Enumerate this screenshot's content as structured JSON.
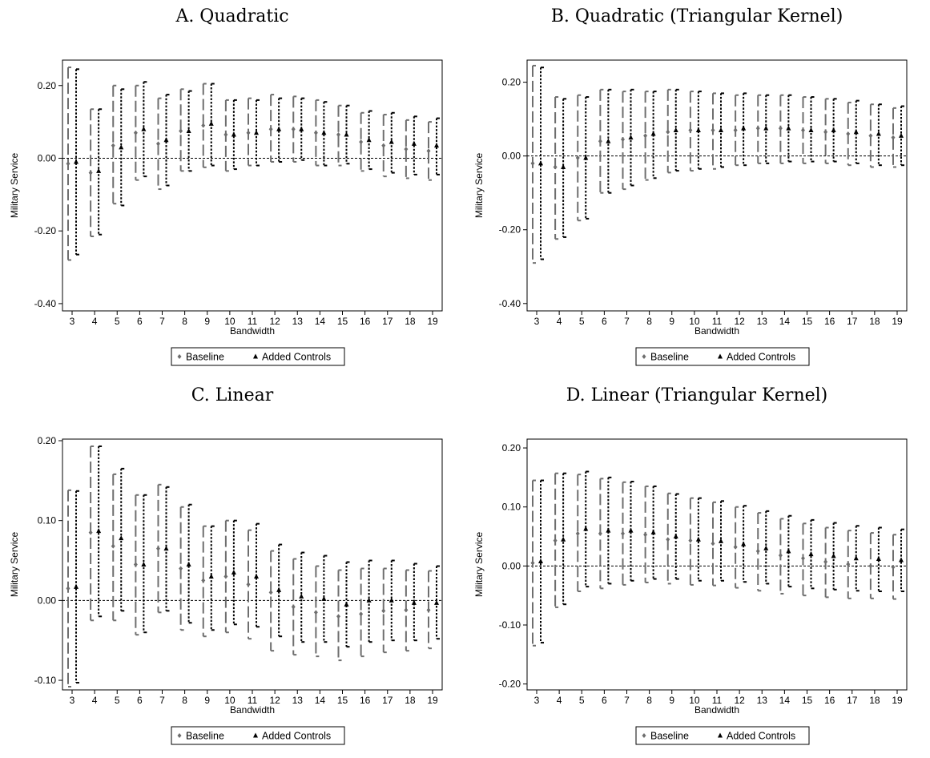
{
  "colors": {
    "baseline": "#6e6e6e",
    "added_controls": "#000000",
    "zero_line": "#000000"
  },
  "chart_data": [
    {
      "type": "errorbar",
      "title": "A. Quadratic",
      "xlabel": "Bandwidth",
      "ylabel": "Military Service",
      "x": [
        3,
        4,
        5,
        6,
        7,
        8,
        9,
        10,
        11,
        12,
        13,
        14,
        15,
        16,
        17,
        18,
        19
      ],
      "xticks": [
        "3",
        "4",
        "5",
        "6",
        "7",
        "8",
        "9",
        "10",
        "11",
        "12",
        "13",
        "14",
        "15",
        "16",
        "17",
        "18",
        "19"
      ],
      "ylim": [
        -0.42,
        0.27
      ],
      "yticks": [
        -0.4,
        -0.2,
        0.0,
        0.2
      ],
      "ytick_labels": [
        "-0.40",
        "-0.20",
        "0.00",
        "0.20"
      ],
      "legend": [
        "Baseline",
        "Added Controls"
      ],
      "series": [
        {
          "name": "Baseline",
          "point": [
            -0.015,
            -0.04,
            0.035,
            0.07,
            0.04,
            0.075,
            0.09,
            0.065,
            0.07,
            0.08,
            0.08,
            0.07,
            0.065,
            0.045,
            0.035,
            0.025,
            0.02
          ],
          "lower": [
            -0.28,
            -0.215,
            -0.125,
            -0.06,
            -0.085,
            -0.035,
            -0.025,
            -0.035,
            -0.02,
            -0.01,
            -0.01,
            -0.02,
            -0.02,
            -0.035,
            -0.05,
            -0.055,
            -0.06
          ],
          "upper": [
            0.25,
            0.135,
            0.2,
            0.2,
            0.165,
            0.19,
            0.205,
            0.16,
            0.165,
            0.175,
            0.17,
            0.16,
            0.145,
            0.125,
            0.12,
            0.105,
            0.1
          ]
        },
        {
          "name": "Added Controls",
          "point": [
            -0.01,
            -0.035,
            0.03,
            0.08,
            0.05,
            0.075,
            0.095,
            0.065,
            0.07,
            0.08,
            0.08,
            0.07,
            0.065,
            0.05,
            0.045,
            0.04,
            0.035
          ],
          "lower": [
            -0.265,
            -0.21,
            -0.13,
            -0.05,
            -0.075,
            -0.035,
            -0.02,
            -0.03,
            -0.02,
            -0.01,
            -0.005,
            -0.02,
            -0.015,
            -0.03,
            -0.04,
            -0.045,
            -0.045
          ],
          "upper": [
            0.245,
            0.135,
            0.19,
            0.21,
            0.175,
            0.185,
            0.205,
            0.16,
            0.16,
            0.165,
            0.165,
            0.155,
            0.145,
            0.13,
            0.125,
            0.115,
            0.11
          ]
        }
      ]
    },
    {
      "type": "errorbar",
      "title": "B. Quadratic (Triangular Kernel)",
      "xlabel": "Bandwidth",
      "ylabel": "Military Service",
      "x": [
        3,
        4,
        5,
        6,
        7,
        8,
        9,
        10,
        11,
        12,
        13,
        14,
        15,
        16,
        17,
        18,
        19
      ],
      "xticks": [
        "3",
        "4",
        "5",
        "6",
        "7",
        "8",
        "9",
        "10",
        "11",
        "12",
        "13",
        "14",
        "15",
        "16",
        "17",
        "18",
        "19"
      ],
      "ylim": [
        -0.42,
        0.26
      ],
      "yticks": [
        -0.4,
        -0.2,
        0.0,
        0.2
      ],
      "ytick_labels": [
        "-0.40",
        "-0.20",
        "0.00",
        "0.20"
      ],
      "legend": [
        "Baseline",
        "Added Controls"
      ],
      "series": [
        {
          "name": "Baseline",
          "point": [
            -0.02,
            -0.03,
            -0.005,
            0.04,
            0.045,
            0.055,
            0.065,
            0.07,
            0.07,
            0.07,
            0.075,
            0.075,
            0.07,
            0.065,
            0.06,
            0.055,
            0.05
          ],
          "lower": [
            -0.29,
            -0.225,
            -0.175,
            -0.1,
            -0.09,
            -0.065,
            -0.045,
            -0.04,
            -0.035,
            -0.025,
            -0.02,
            -0.02,
            -0.02,
            -0.02,
            -0.025,
            -0.03,
            -0.03
          ],
          "upper": [
            0.245,
            0.16,
            0.165,
            0.18,
            0.175,
            0.175,
            0.18,
            0.175,
            0.17,
            0.165,
            0.165,
            0.165,
            0.16,
            0.155,
            0.145,
            0.14,
            0.13
          ]
        },
        {
          "name": "Added Controls",
          "point": [
            -0.02,
            -0.03,
            -0.005,
            0.04,
            0.05,
            0.06,
            0.07,
            0.07,
            0.07,
            0.075,
            0.075,
            0.075,
            0.07,
            0.07,
            0.065,
            0.06,
            0.055
          ],
          "lower": [
            -0.28,
            -0.22,
            -0.17,
            -0.1,
            -0.08,
            -0.06,
            -0.04,
            -0.035,
            -0.03,
            -0.025,
            -0.02,
            -0.015,
            -0.015,
            -0.015,
            -0.02,
            -0.025,
            -0.025
          ],
          "upper": [
            0.24,
            0.155,
            0.16,
            0.18,
            0.18,
            0.175,
            0.18,
            0.175,
            0.17,
            0.17,
            0.165,
            0.165,
            0.16,
            0.155,
            0.15,
            0.14,
            0.135
          ]
        }
      ]
    },
    {
      "type": "errorbar",
      "title": "C. Linear",
      "xlabel": "Bandwidth",
      "ylabel": "Military Service",
      "x": [
        3,
        4,
        5,
        6,
        7,
        8,
        9,
        10,
        11,
        12,
        13,
        14,
        15,
        16,
        17,
        18,
        19
      ],
      "xticks": [
        "3",
        "4",
        "5",
        "6",
        "7",
        "8",
        "9",
        "10",
        "11",
        "12",
        "13",
        "14",
        "15",
        "16",
        "17",
        "18",
        "19"
      ],
      "ylim": [
        -0.112,
        0.202
      ],
      "yticks": [
        -0.1,
        0.0,
        0.1,
        0.2
      ],
      "ytick_labels": [
        "-0.10",
        "0.00",
        "0.10",
        "0.20"
      ],
      "legend": [
        "Baseline",
        "Added Controls"
      ],
      "series": [
        {
          "name": "Baseline",
          "point": [
            0.015,
            0.085,
            0.068,
            0.045,
            0.065,
            0.04,
            0.025,
            0.03,
            0.02,
            0.01,
            -0.008,
            -0.015,
            -0.02,
            -0.017,
            -0.013,
            -0.012,
            -0.012
          ],
          "lower": [
            -0.108,
            -0.025,
            -0.025,
            -0.043,
            -0.015,
            -0.037,
            -0.045,
            -0.04,
            -0.048,
            -0.063,
            -0.068,
            -0.07,
            -0.075,
            -0.07,
            -0.065,
            -0.063,
            -0.06
          ],
          "upper": [
            0.138,
            0.193,
            0.158,
            0.132,
            0.145,
            0.117,
            0.093,
            0.1,
            0.088,
            0.062,
            0.052,
            0.043,
            0.038,
            0.04,
            0.04,
            0.038,
            0.037
          ]
        },
        {
          "name": "Added Controls",
          "point": [
            0.017,
            0.087,
            0.078,
            0.045,
            0.065,
            0.045,
            0.03,
            0.035,
            0.03,
            0.013,
            0.005,
            0.002,
            -0.005,
            0.0,
            0.0,
            -0.003,
            -0.003
          ],
          "lower": [
            -0.103,
            -0.02,
            -0.013,
            -0.04,
            -0.013,
            -0.028,
            -0.037,
            -0.03,
            -0.033,
            -0.045,
            -0.052,
            -0.052,
            -0.058,
            -0.052,
            -0.05,
            -0.05,
            -0.048
          ],
          "upper": [
            0.137,
            0.193,
            0.165,
            0.132,
            0.142,
            0.12,
            0.093,
            0.1,
            0.096,
            0.07,
            0.06,
            0.056,
            0.048,
            0.05,
            0.05,
            0.046,
            0.043
          ]
        }
      ]
    },
    {
      "type": "errorbar",
      "title": "D. Linear (Triangular Kernel)",
      "xlabel": "Bandwidth",
      "ylabel": "Military Service",
      "x": [
        3,
        4,
        5,
        6,
        7,
        8,
        9,
        10,
        11,
        12,
        13,
        14,
        15,
        16,
        17,
        18,
        19
      ],
      "xticks": [
        "3",
        "4",
        "5",
        "6",
        "7",
        "8",
        "9",
        "10",
        "11",
        "12",
        "13",
        "14",
        "15",
        "16",
        "17",
        "18",
        "19"
      ],
      "ylim": [
        -0.21,
        0.215
      ],
      "yticks": [
        -0.2,
        -0.1,
        0.0,
        0.1,
        0.2
      ],
      "ytick_labels": [
        "-0.20",
        "-0.10",
        "0.00",
        "0.10",
        "0.20"
      ],
      "legend": [
        "Baseline",
        "Added Controls"
      ],
      "series": [
        {
          "name": "Baseline",
          "point": [
            0.005,
            0.043,
            0.055,
            0.055,
            0.055,
            0.053,
            0.045,
            0.043,
            0.038,
            0.032,
            0.025,
            0.018,
            0.013,
            0.007,
            0.003,
            0.0,
            -0.002
          ],
          "lower": [
            -0.135,
            -0.07,
            -0.043,
            -0.038,
            -0.032,
            -0.028,
            -0.03,
            -0.032,
            -0.033,
            -0.037,
            -0.042,
            -0.047,
            -0.05,
            -0.053,
            -0.055,
            -0.055,
            -0.056
          ],
          "upper": [
            0.145,
            0.157,
            0.155,
            0.148,
            0.142,
            0.135,
            0.123,
            0.115,
            0.108,
            0.1,
            0.09,
            0.08,
            0.072,
            0.065,
            0.06,
            0.056,
            0.053
          ]
        },
        {
          "name": "Added Controls",
          "point": [
            0.008,
            0.045,
            0.063,
            0.06,
            0.06,
            0.057,
            0.05,
            0.045,
            0.042,
            0.037,
            0.03,
            0.025,
            0.02,
            0.017,
            0.013,
            0.012,
            0.01
          ],
          "lower": [
            -0.13,
            -0.065,
            -0.035,
            -0.03,
            -0.025,
            -0.022,
            -0.022,
            -0.025,
            -0.025,
            -0.027,
            -0.03,
            -0.035,
            -0.038,
            -0.04,
            -0.042,
            -0.043,
            -0.043
          ],
          "upper": [
            0.145,
            0.157,
            0.16,
            0.15,
            0.143,
            0.135,
            0.122,
            0.115,
            0.11,
            0.102,
            0.093,
            0.085,
            0.078,
            0.073,
            0.068,
            0.065,
            0.062
          ]
        }
      ]
    }
  ]
}
